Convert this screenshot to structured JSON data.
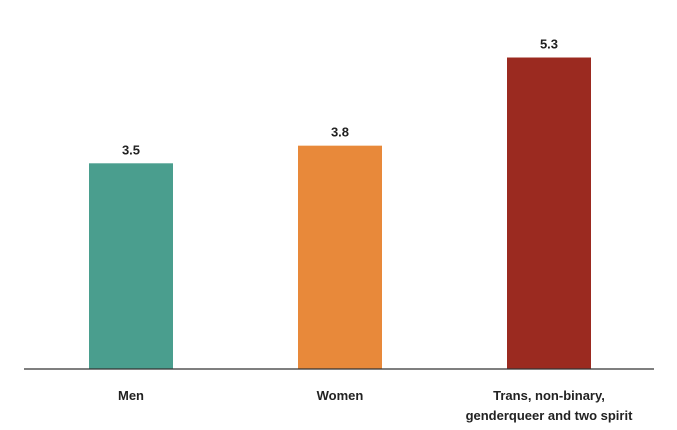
{
  "chart_data": {
    "type": "bar",
    "categories": [
      [
        "Men"
      ],
      [
        "Women"
      ],
      [
        "Trans, non-binary,",
        "genderqueer and two spirit"
      ]
    ],
    "values": [
      3.5,
      3.8,
      5.3
    ],
    "value_labels": [
      "3.5",
      "3.8",
      "5.3"
    ],
    "colors": [
      "#4a9e8e",
      "#e8893a",
      "#9b2a20"
    ],
    "ylim": [
      0,
      5.7
    ],
    "grid": false,
    "legend": "none"
  }
}
